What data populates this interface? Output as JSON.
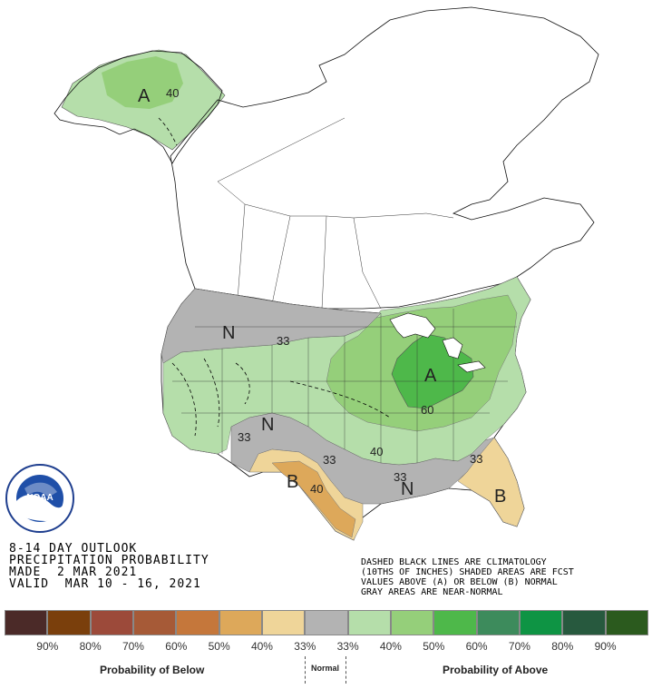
{
  "outlook": {
    "line1": "8-14 DAY OUTLOOK",
    "line2": "PRECIPITATION PROBABILITY",
    "line3": "MADE  2 MAR 2021",
    "line4": "VALID  MAR 10 - 16, 2021"
  },
  "legend_note": {
    "line1": "DASHED BLACK LINES ARE CLIMATOLOGY",
    "line2": "(10THS OF INCHES) SHADED AREAS ARE FCST",
    "line3": "VALUES ABOVE (A) OR BELOW (B) NORMAL",
    "line4": "GRAY AREAS ARE NEAR-NORMAL"
  },
  "logo": {
    "text": "NOAA"
  },
  "map_labels": {
    "alaska_cat": "A",
    "alaska_pct": "40",
    "nw_cat": "N",
    "nw_pct": "33",
    "greatlakes_cat": "A",
    "greatlakes_pct": "60",
    "sw_cat": "N",
    "sw_pct": "33",
    "tx_cat": "B",
    "tx_pct": "40",
    "tx_33": "33",
    "plains_40": "40",
    "south_cat": "N",
    "south_pct": "33",
    "fl_cat": "B",
    "fl_pct": "33"
  },
  "colorbar": {
    "colors": [
      "#4b2a28",
      "#7a3f0c",
      "#9c4a3a",
      "#a65a37",
      "#c5773b",
      "#dda85a",
      "#efd599",
      "#b3b3b3",
      "#b5deaa",
      "#95cf7a",
      "#4eb84a",
      "#3d8b5c",
      "#0e9444",
      "#27593e",
      "#2b5a1e"
    ],
    "labels": [
      "90%",
      "80%",
      "70%",
      "60%",
      "50%",
      "40%",
      "33%",
      "33%",
      "40%",
      "50%",
      "60%",
      "70%",
      "80%",
      "90%"
    ]
  },
  "legend_titles": {
    "below": "Probability of Below",
    "normal": "Normal",
    "above": "Probability of Above"
  }
}
